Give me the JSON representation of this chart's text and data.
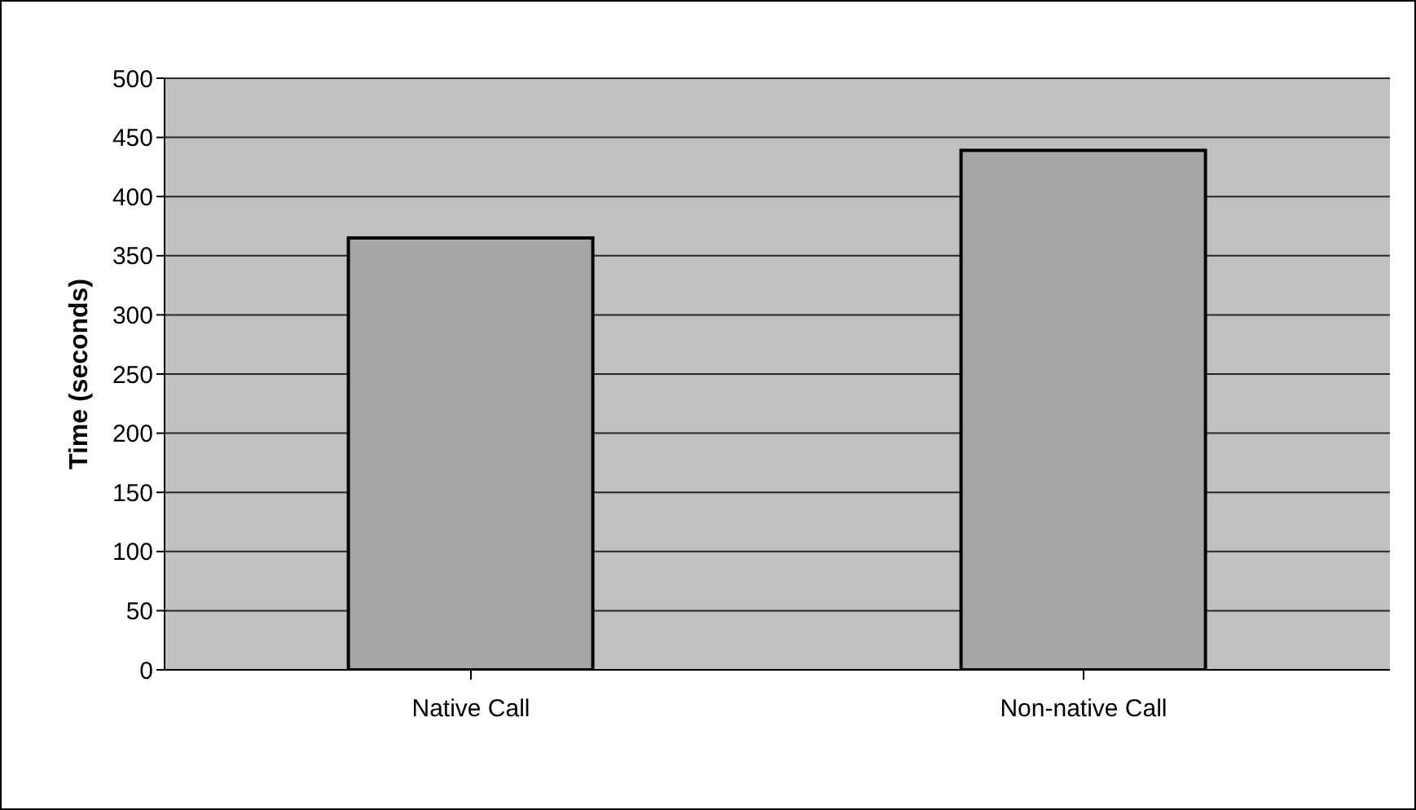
{
  "chart_data": {
    "type": "bar",
    "ylabel": "Time (seconds)",
    "categories": [
      "Native Call",
      "Non-native Call"
    ],
    "values": [
      365,
      439
    ],
    "color": "#a6a6a6",
    "ylim": [
      0,
      500
    ],
    "yticks": [
      0,
      50,
      100,
      150,
      200,
      250,
      300,
      350,
      400,
      450,
      500
    ],
    "grid": "y"
  }
}
